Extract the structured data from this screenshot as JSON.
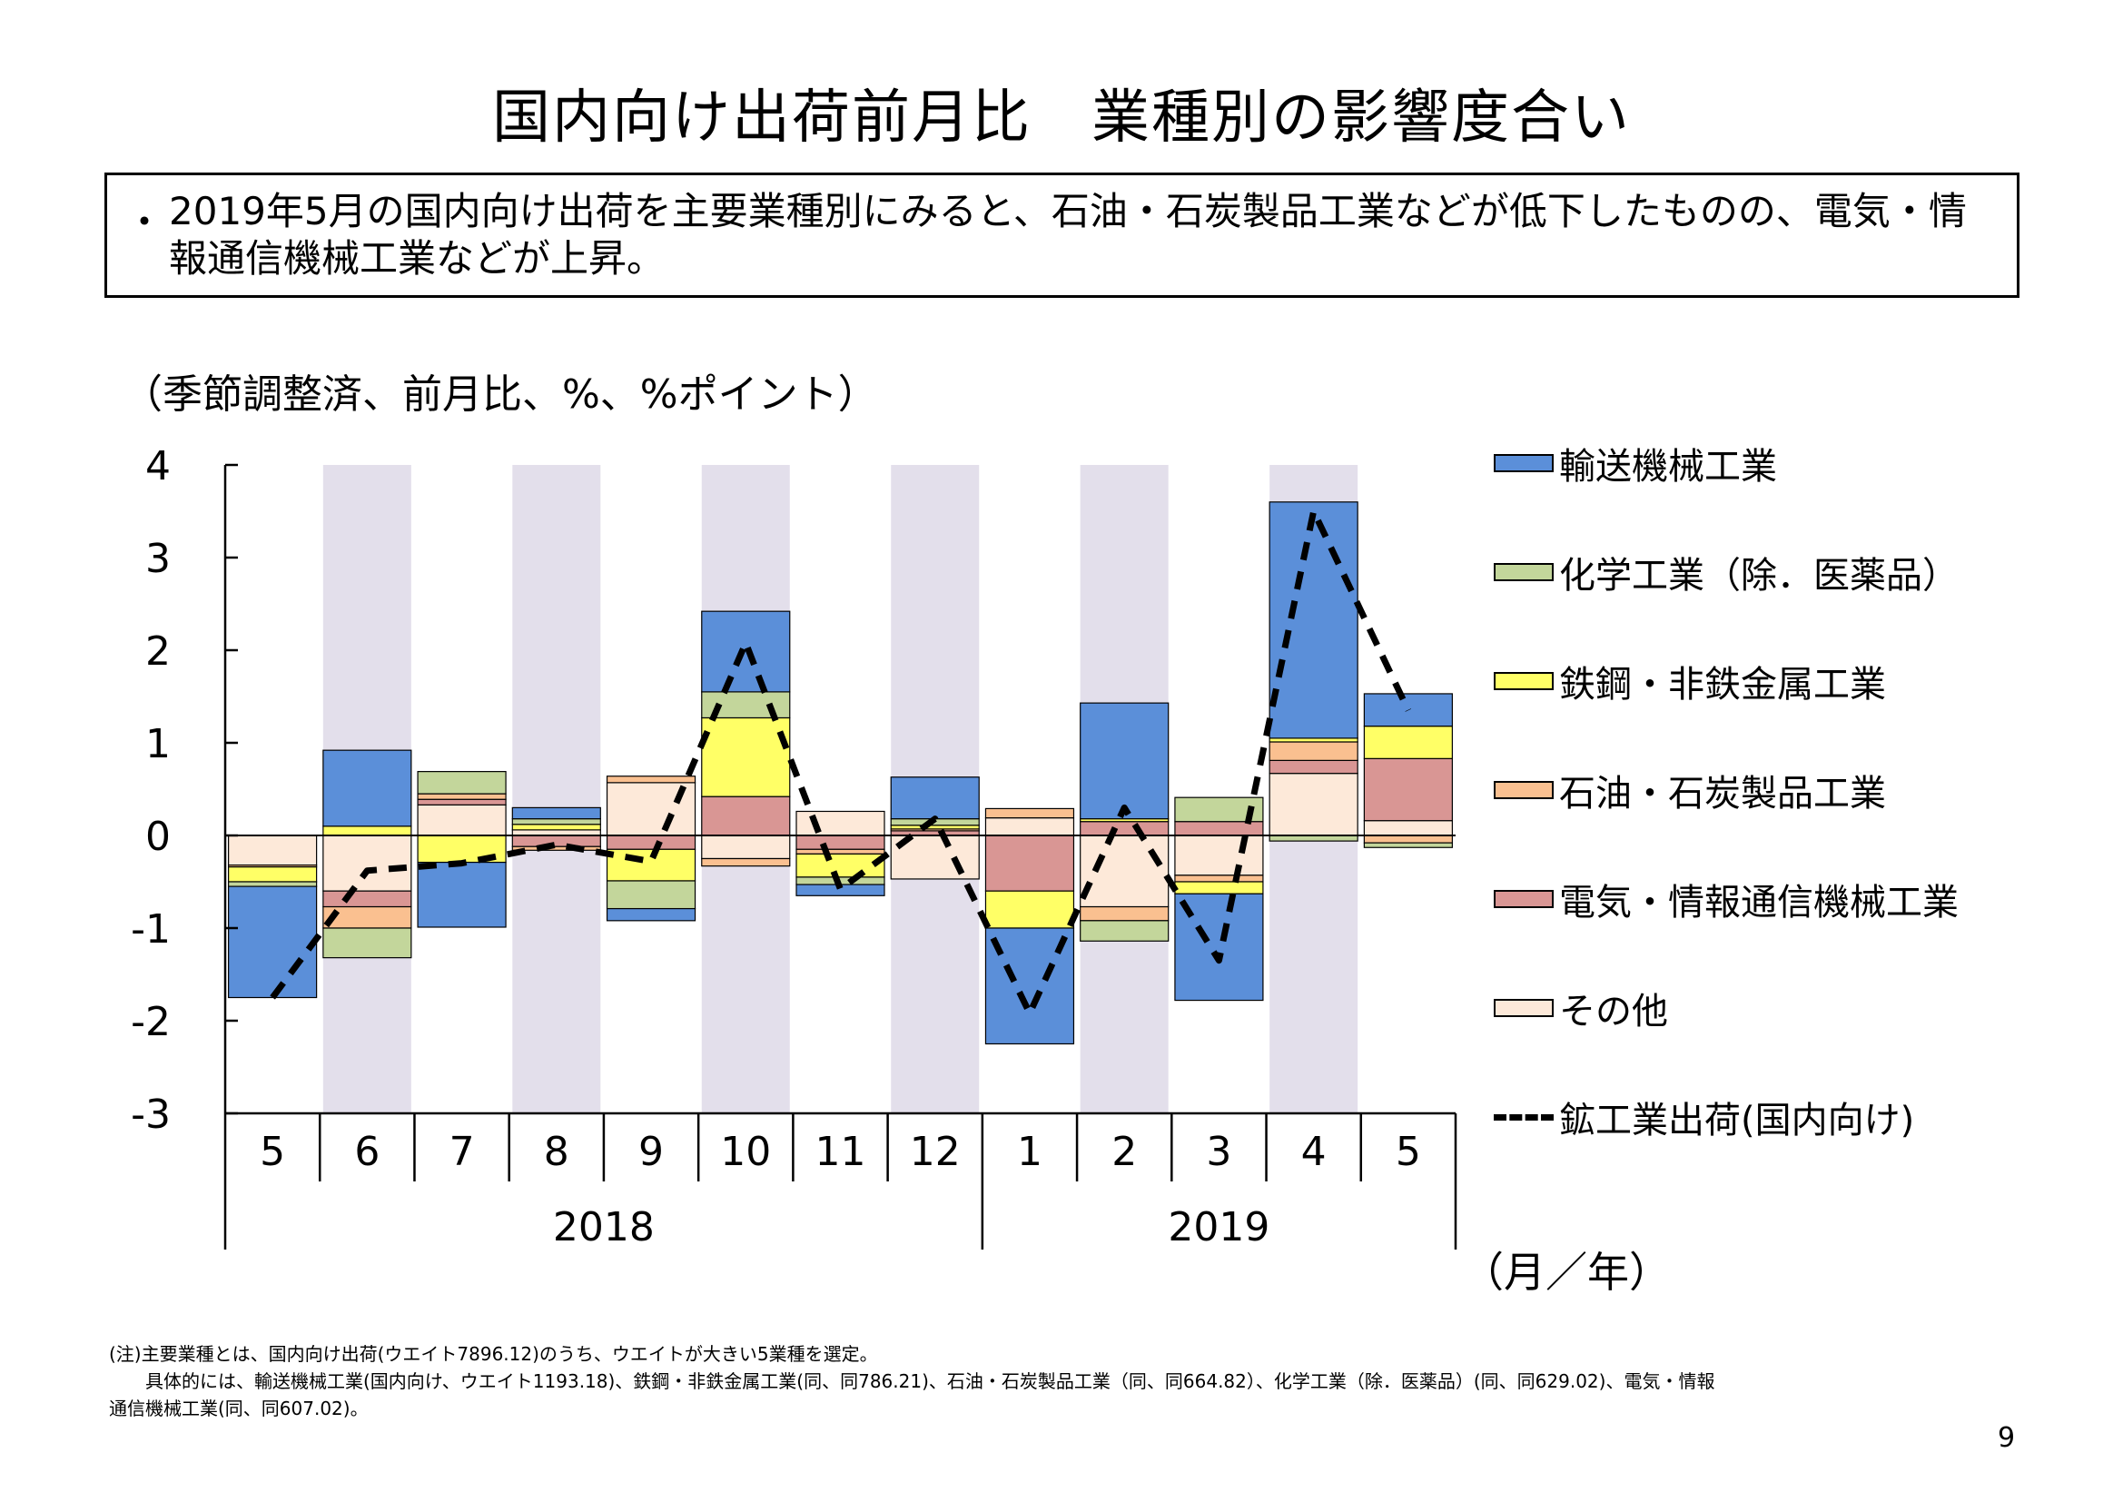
{
  "page": {
    "title": "国内向け出荷前月比　業種別の影響度合い",
    "summary_bullet": "・",
    "summary": "2019年5月の国内向け出荷を主要業種別にみると、石油・石炭製品工業などが低下したものの、電気・情報通信機械工業などが上昇。",
    "unit_label": "（季節調整済、前月比、%、%ポイント）",
    "axis_unit": "（月／年）",
    "notes": [
      "(注)主要業種とは、国内向け出荷(ウエイト7896.12)のうち、ウエイトが大きい5業種を選定。",
      "　　具体的には、輸送機械工業(国内向け、ウエイト1193.18)、鉄鋼・非鉄金属工業(同、同786.21)、石油・石炭製品工業（同、同664.82）、化学工業（除．医薬品）(同、同629.02)、電気・情報",
      "通信機械工業(同、同607.02)。"
    ],
    "page_number": "9"
  },
  "legend": {
    "items": [
      {
        "label": "輸送機械工業",
        "color": "#5b8fd9"
      },
      {
        "label": "化学工業（除．医薬品）",
        "color": "#c3d69b"
      },
      {
        "label": "鉄鋼・非鉄金属工業",
        "color": "#ffff66"
      },
      {
        "label": "石油・石炭製品工業",
        "color": "#fac090"
      },
      {
        "label": "電気・情報通信機械工業",
        "color": "#d99694"
      },
      {
        "label": "その他",
        "color": "#fde9d9"
      }
    ],
    "line_label": "鉱工業出荷(国内向け)"
  },
  "chart_data": {
    "type": "bar",
    "stacked": true,
    "categories": [
      "5",
      "6",
      "7",
      "8",
      "9",
      "10",
      "11",
      "12",
      "1",
      "2",
      "3",
      "4",
      "5"
    ],
    "years": [
      {
        "label": "2018",
        "span": [
          0,
          7
        ]
      },
      {
        "label": "2019",
        "span": [
          8,
          12
        ]
      }
    ],
    "ylim": [
      -3,
      4
    ],
    "yticks": [
      "4",
      "3",
      "2",
      "1",
      "0",
      "-1",
      "-2",
      "-3"
    ],
    "shaded_categories": [
      1,
      3,
      5,
      7,
      9,
      11
    ],
    "series": [
      {
        "name": "その他",
        "color": "#fde9d9",
        "values": [
          -0.32,
          -0.6,
          0.33,
          0.06,
          0.57,
          -0.25,
          0.26,
          -0.47,
          0.19,
          -0.77,
          -0.43,
          0.67,
          0.16
        ]
      },
      {
        "name": "電気・情報通信機械工業",
        "color": "#d99694",
        "values": [
          0.0,
          -0.17,
          0.06,
          -0.12,
          -0.15,
          0.42,
          -0.15,
          0.05,
          -0.6,
          0.15,
          0.15,
          0.14,
          0.67
        ]
      },
      {
        "name": "石油・石炭製品工業",
        "color": "#fac090",
        "values": [
          -0.02,
          -0.23,
          0.06,
          -0.04,
          0.07,
          -0.08,
          -0.05,
          0.02,
          0.1,
          -0.15,
          -0.07,
          0.2,
          -0.08
        ]
      },
      {
        "name": "鉄鋼・非鉄金属工業",
        "color": "#ffff66",
        "values": [
          -0.16,
          0.1,
          -0.29,
          0.06,
          -0.34,
          0.85,
          -0.25,
          0.04,
          -0.4,
          0.03,
          -0.13,
          0.04,
          0.35
        ]
      },
      {
        "name": "化学工業（除．医薬品）",
        "color": "#c3d69b",
        "values": [
          -0.05,
          -0.32,
          0.24,
          0.06,
          -0.3,
          0.28,
          -0.08,
          0.07,
          0.0,
          -0.22,
          0.26,
          -0.06,
          -0.05
        ]
      },
      {
        "name": "輸送機械工業",
        "color": "#5b8fd9",
        "values": [
          -1.2,
          0.82,
          -0.7,
          0.12,
          -0.13,
          0.87,
          -0.12,
          0.45,
          -1.25,
          1.25,
          -1.15,
          2.55,
          0.35
        ]
      }
    ],
    "line": {
      "name": "鉱工業出荷(国内向け)",
      "color": "#000000",
      "values": [
        -1.75,
        -0.38,
        -0.3,
        -0.1,
        -0.28,
        2.08,
        -0.58,
        0.18,
        -1.92,
        0.3,
        -1.35,
        3.5,
        1.35
      ]
    }
  }
}
